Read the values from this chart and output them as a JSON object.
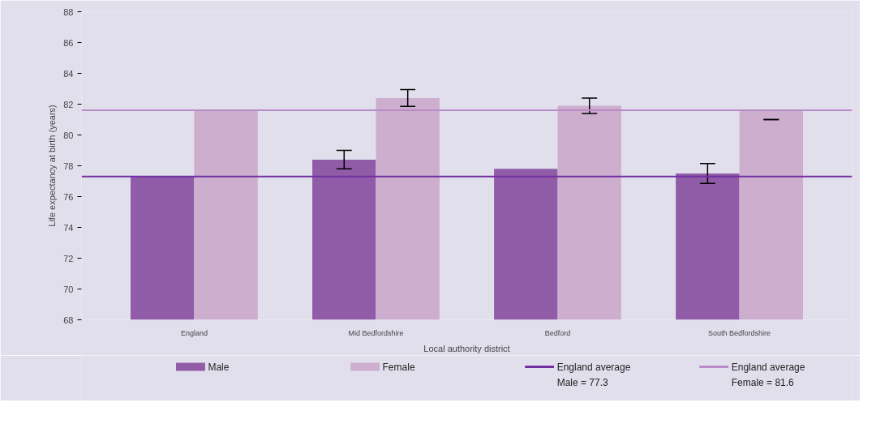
{
  "chart_data": {
    "type": "bar",
    "xlabel": "Local authority district",
    "ylabel": "Life expectancy at birth (years)",
    "categories": [
      "England",
      "Mid Bedfordshire",
      "Bedford",
      "South Bedfordshire"
    ],
    "series": [
      {
        "name": "Male",
        "color": "#905ca8",
        "values": [
          77.3,
          78.4,
          77.8,
          77.5
        ],
        "errors": [
          null,
          0.6,
          null,
          0.65
        ]
      },
      {
        "name": "Female",
        "color": "#cdaecf",
        "values": [
          81.6,
          82.4,
          81.9,
          81.6
        ],
        "errors": [
          0,
          0.55,
          0.5,
          [
            81.0,
            81.0
          ]
        ]
      }
    ],
    "ylim": [
      68,
      88
    ],
    "yticks": [
      68,
      70,
      72,
      74,
      76,
      78,
      80,
      82,
      84,
      86,
      88
    ],
    "ref_lines": [
      {
        "axis": "y",
        "value": 77.3,
        "label": "England average\nMale = 77.3",
        "color": "#7030a0"
      },
      {
        "axis": "y",
        "value": 81.6,
        "label": "England average\nFemale = 81.6",
        "color": "#b98ac8"
      }
    ],
    "grid": false,
    "legend": "bottom"
  }
}
